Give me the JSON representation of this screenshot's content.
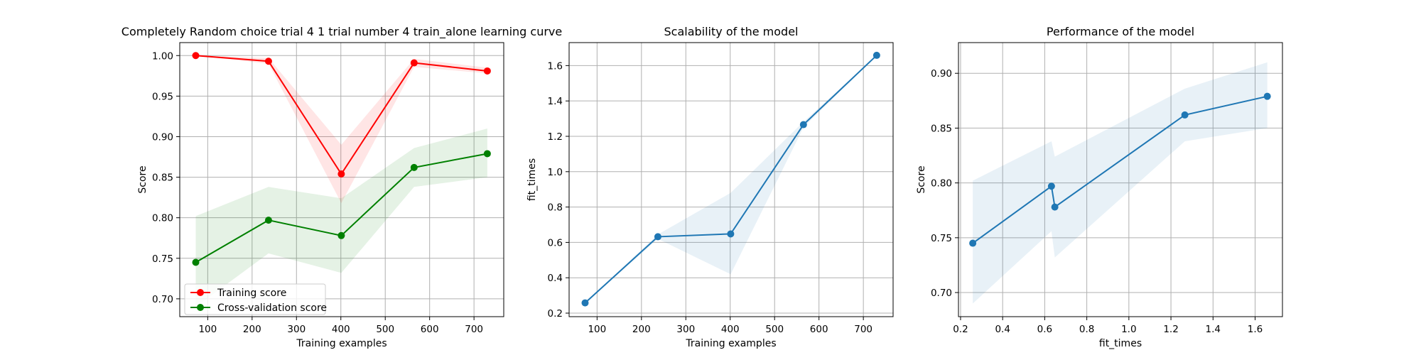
{
  "chart_data": [
    {
      "type": "line",
      "title": "Completely Random choice trial 4 1 trial number 4 train_alone learning curve",
      "xlabel": "Training examples",
      "ylabel": "Score",
      "xlim": [
        37,
        767
      ],
      "ylim": [
        0.678,
        1.016
      ],
      "xticks": [
        100,
        200,
        300,
        400,
        500,
        600,
        700
      ],
      "yticks": [
        0.7,
        0.75,
        0.8,
        0.85,
        0.9,
        0.95,
        1.0
      ],
      "ytick_labels": [
        "0.70",
        "0.75",
        "0.80",
        "0.85",
        "0.90",
        "0.95",
        "1.00"
      ],
      "grid": true,
      "legend": "lower-left",
      "x": [
        73,
        237,
        401,
        565,
        730
      ],
      "series": [
        {
          "name": "Training score",
          "color": "#ff0000",
          "values": [
            1.0,
            0.993,
            0.854,
            0.991,
            0.981
          ],
          "band_low": [
            1.0,
            0.99,
            0.818,
            0.986,
            0.978
          ],
          "band_high": [
            1.0,
            0.997,
            0.89,
            0.996,
            0.985
          ]
        },
        {
          "name": "Cross-validation score",
          "color": "#008000",
          "values": [
            0.745,
            0.797,
            0.778,
            0.862,
            0.879
          ],
          "band_low": [
            0.69,
            0.756,
            0.732,
            0.838,
            0.85
          ],
          "band_high": [
            0.802,
            0.838,
            0.824,
            0.886,
            0.91
          ]
        }
      ]
    },
    {
      "type": "line",
      "title": "Scalability of the model",
      "xlabel": "Training examples",
      "ylabel": "fit_times",
      "xlim": [
        37,
        767
      ],
      "ylim": [
        0.18,
        1.73
      ],
      "xticks": [
        100,
        200,
        300,
        400,
        500,
        600,
        700
      ],
      "yticks": [
        0.2,
        0.4,
        0.6,
        0.8,
        1.0,
        1.2,
        1.4,
        1.6
      ],
      "ytick_labels": [
        "0.2",
        "0.4",
        "0.6",
        "0.8",
        "1.0",
        "1.2",
        "1.4",
        "1.6"
      ],
      "grid": true,
      "x": [
        73,
        237,
        401,
        565,
        730
      ],
      "series": [
        {
          "color": "#1f77b4",
          "values": [
            0.258,
            0.632,
            0.648,
            1.266,
            1.658
          ],
          "band_low": [
            0.258,
            0.62,
            0.42,
            1.25,
            1.658
          ],
          "band_high": [
            0.258,
            0.645,
            0.88,
            1.282,
            1.658
          ]
        }
      ]
    },
    {
      "type": "line",
      "title": "Performance of the model",
      "xlabel": "fit_times",
      "ylabel": "Score",
      "xlim": [
        0.19,
        1.73
      ],
      "ylim": [
        0.678,
        0.928
      ],
      "xticks": [
        0.2,
        0.4,
        0.6,
        0.8,
        1.0,
        1.2,
        1.4,
        1.6
      ],
      "xtick_labels": [
        "0.2",
        "0.4",
        "0.6",
        "0.8",
        "1.0",
        "1.2",
        "1.4",
        "1.6"
      ],
      "yticks": [
        0.7,
        0.75,
        0.8,
        0.85,
        0.9
      ],
      "ytick_labels": [
        "0.70",
        "0.75",
        "0.80",
        "0.85",
        "0.90"
      ],
      "grid": true,
      "x": [
        0.258,
        0.632,
        0.648,
        1.266,
        1.658
      ],
      "series": [
        {
          "color": "#1f77b4",
          "values": [
            0.745,
            0.797,
            0.778,
            0.862,
            0.879
          ],
          "band_low": [
            0.69,
            0.756,
            0.732,
            0.838,
            0.85
          ],
          "band_high": [
            0.802,
            0.838,
            0.824,
            0.886,
            0.91
          ]
        }
      ]
    }
  ]
}
